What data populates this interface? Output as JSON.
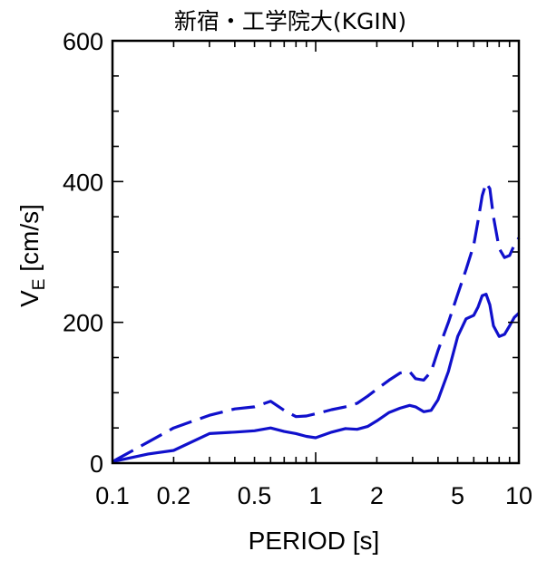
{
  "chart_data": {
    "type": "line",
    "title": "新宿・工学院大(KGIN)",
    "xlabel": "PERIOD [s]",
    "ylabel": {
      "main": "V",
      "subscript": "E",
      "unit": " [cm/s]"
    },
    "x_scale": "log",
    "xlim": [
      0.1,
      10
    ],
    "ylim": [
      0,
      600
    ],
    "x_ticks": [
      {
        "value": 0.1,
        "label": "0.1"
      },
      {
        "value": 0.2,
        "label": "0.2"
      },
      {
        "value": 0.5,
        "label": "0.5"
      },
      {
        "value": 1,
        "label": "1"
      },
      {
        "value": 2,
        "label": "2"
      },
      {
        "value": 5,
        "label": "5"
      },
      {
        "value": 10,
        "label": "10"
      }
    ],
    "y_ticks": [
      {
        "value": 0,
        "label": "0"
      },
      {
        "value": 200,
        "label": "200"
      },
      {
        "value": 400,
        "label": "400"
      },
      {
        "value": 600,
        "label": "600"
      }
    ],
    "grid": false,
    "series": [
      {
        "style": "dashed",
        "color": "#1010cc",
        "x": [
          0.1,
          0.15,
          0.2,
          0.3,
          0.4,
          0.5,
          0.6,
          0.7,
          0.8,
          0.9,
          1.0,
          1.2,
          1.4,
          1.6,
          1.8,
          2.0,
          2.3,
          2.6,
          2.9,
          3.1,
          3.4,
          3.7,
          4.0,
          4.5,
          5.0,
          5.5,
          6.0,
          6.3,
          6.6,
          6.9,
          7.2,
          7.5,
          8.0,
          8.5,
          9.0,
          9.5,
          10.0
        ],
        "y": [
          2,
          30,
          50,
          68,
          77,
          80,
          88,
          75,
          66,
          67,
          70,
          76,
          80,
          85,
          95,
          105,
          118,
          128,
          130,
          120,
          118,
          130,
          160,
          200,
          240,
          275,
          310,
          345,
          380,
          398,
          390,
          350,
          305,
          292,
          295,
          310,
          320
        ]
      },
      {
        "style": "solid",
        "color": "#1010cc",
        "x": [
          0.1,
          0.15,
          0.2,
          0.3,
          0.4,
          0.5,
          0.6,
          0.7,
          0.8,
          0.9,
          1.0,
          1.2,
          1.4,
          1.6,
          1.8,
          2.0,
          2.3,
          2.6,
          2.9,
          3.1,
          3.4,
          3.7,
          4.0,
          4.5,
          5.0,
          5.5,
          6.0,
          6.3,
          6.6,
          6.9,
          7.2,
          7.5,
          8.0,
          8.5,
          9.0,
          9.5,
          10.0
        ],
        "y": [
          2,
          13,
          18,
          42,
          44,
          46,
          50,
          45,
          42,
          38,
          36,
          44,
          49,
          48,
          52,
          60,
          72,
          78,
          82,
          80,
          73,
          75,
          90,
          130,
          180,
          205,
          210,
          222,
          238,
          240,
          225,
          195,
          180,
          183,
          195,
          207,
          213
        ]
      }
    ]
  }
}
